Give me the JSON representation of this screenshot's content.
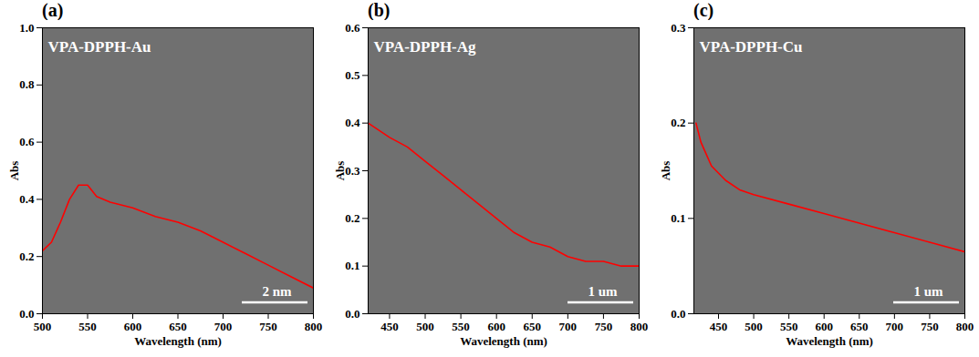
{
  "chart_data": [
    {
      "type": "line",
      "title": "(a)",
      "annotation": "VPA-DPPH-Au",
      "scale_bar": "2 nm",
      "xlabel": "Wavelength (nm)",
      "ylabel": "Abs",
      "color": "#ff0000",
      "x": [
        500,
        510,
        520,
        530,
        540,
        550,
        560,
        575,
        600,
        625,
        650,
        675,
        700,
        725,
        750,
        775,
        800
      ],
      "values": [
        0.22,
        0.25,
        0.32,
        0.4,
        0.45,
        0.45,
        0.41,
        0.39,
        0.37,
        0.34,
        0.32,
        0.29,
        0.25,
        0.21,
        0.17,
        0.13,
        0.09
      ],
      "xlim": [
        500,
        800
      ],
      "xticks": [
        500,
        550,
        600,
        650,
        700,
        750,
        800
      ],
      "ylim": [
        0,
        1
      ],
      "yticks": [
        {
          "value": 0,
          "label": "0.0"
        },
        0.2,
        0.4,
        0.6,
        0.8,
        {
          "value": 1,
          "label": "1.0"
        }
      ]
    },
    {
      "type": "line",
      "title": "(b)",
      "annotation": "VPA-DPPH-Ag",
      "scale_bar": "1 um",
      "xlabel": "Wavelength (nm)",
      "ylabel": "Abs",
      "color": "#ff0000",
      "x": [
        420,
        450,
        475,
        500,
        525,
        550,
        575,
        600,
        625,
        650,
        675,
        700,
        725,
        750,
        775,
        800
      ],
      "values": [
        0.4,
        0.37,
        0.35,
        0.32,
        0.29,
        0.26,
        0.23,
        0.2,
        0.17,
        0.15,
        0.14,
        0.12,
        0.11,
        0.11,
        0.1,
        0.1
      ],
      "xlim": [
        420,
        800
      ],
      "xticks": [
        450,
        500,
        550,
        600,
        650,
        700,
        750,
        800
      ],
      "ylim": [
        0,
        0.6
      ],
      "yticks": [
        {
          "value": 0,
          "label": "0.0"
        },
        0.1,
        0.2,
        0.3,
        0.4,
        0.5,
        0.6
      ]
    },
    {
      "type": "line",
      "title": "(c)",
      "annotation": "VPA-DPPH-Cu",
      "scale_bar": "1 um",
      "xlabel": "Wavelength (nm)",
      "ylabel": "Abs",
      "color": "#ff0000",
      "x": [
        418,
        425,
        440,
        460,
        480,
        500,
        550,
        600,
        650,
        700,
        750,
        800
      ],
      "values": [
        0.2,
        0.18,
        0.155,
        0.14,
        0.13,
        0.125,
        0.115,
        0.105,
        0.095,
        0.085,
        0.075,
        0.065
      ],
      "xlim": [
        415,
        800
      ],
      "xticks": [
        450,
        500,
        550,
        600,
        650,
        700,
        750,
        800
      ],
      "ylim": [
        0,
        0.3
      ],
      "yticks": [
        {
          "value": 0,
          "label": "0.0"
        },
        0.1,
        0.2,
        0.3
      ]
    }
  ]
}
